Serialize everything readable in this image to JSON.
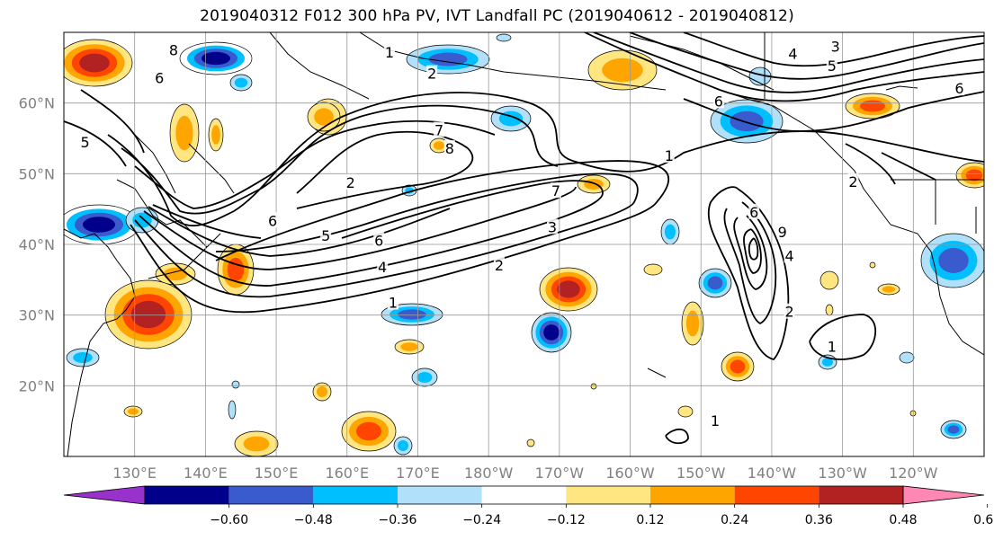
{
  "title": "2019040312 F012 300 hPa PV, IVT Landfall PC (2019040612 - 2019040812)",
  "map": {
    "lon_range": [
      120,
      250
    ],
    "lat_range": [
      10,
      70
    ],
    "lat_labels": [
      "20°N",
      "30°N",
      "40°N",
      "50°N",
      "60°N"
    ],
    "lat_values": [
      20,
      30,
      40,
      50,
      60
    ],
    "lon_labels": [
      "130°E",
      "140°E",
      "150°E",
      "160°E",
      "170°E",
      "180°W",
      "170°W",
      "160°W",
      "150°W",
      "140°W",
      "130°W",
      "120°W"
    ],
    "lon_values": [
      130,
      140,
      150,
      160,
      170,
      180,
      190,
      200,
      210,
      220,
      230,
      240
    ],
    "gridlines": true
  },
  "contours": {
    "variable": "300 hPa PV",
    "color": "#000000",
    "labels": [
      {
        "text": "1",
        "lon": 166.5,
        "lat": 31.8
      },
      {
        "text": "2",
        "lon": 181.5,
        "lat": 37.1
      },
      {
        "text": "3",
        "lon": 189,
        "lat": 42.5
      },
      {
        "text": "4",
        "lon": 165,
        "lat": 36.8
      },
      {
        "text": "5",
        "lon": 157,
        "lat": 41.3
      },
      {
        "text": "6",
        "lon": 164.5,
        "lat": 40.6
      },
      {
        "text": "7",
        "lon": 189.5,
        "lat": 47.6
      },
      {
        "text": "7",
        "lon": 173,
        "lat": 56.2
      },
      {
        "text": "8",
        "lon": 174.5,
        "lat": 53.6
      },
      {
        "text": "6",
        "lon": 149.5,
        "lat": 43.4
      },
      {
        "text": "5",
        "lon": 123,
        "lat": 54.5
      },
      {
        "text": "6",
        "lon": 133.5,
        "lat": 63.6
      },
      {
        "text": "8",
        "lon": 135.5,
        "lat": 67.5
      },
      {
        "text": "2",
        "lon": 160.5,
        "lat": 48.8
      },
      {
        "text": "6",
        "lon": 217.5,
        "lat": 44.6
      },
      {
        "text": "9",
        "lon": 221.5,
        "lat": 41.8
      },
      {
        "text": "4",
        "lon": 222.5,
        "lat": 38.4
      },
      {
        "text": "2",
        "lon": 222.5,
        "lat": 30.5
      },
      {
        "text": "1",
        "lon": 228.5,
        "lat": 25.6
      },
      {
        "text": "1",
        "lon": 205.5,
        "lat": 52.6
      },
      {
        "text": "2",
        "lon": 231.5,
        "lat": 48.9
      },
      {
        "text": "1",
        "lon": 166,
        "lat": 67.2
      },
      {
        "text": "2",
        "lon": 172,
        "lat": 64.2
      },
      {
        "text": "3",
        "lon": 229,
        "lat": 68
      },
      {
        "text": "4",
        "lon": 223,
        "lat": 67
      },
      {
        "text": "5",
        "lon": 228.5,
        "lat": 65.3
      },
      {
        "text": "6",
        "lon": 246.5,
        "lat": 62.1
      },
      {
        "text": "6",
        "lon": 212.5,
        "lat": 60.3
      },
      {
        "text": "1",
        "lon": 212,
        "lat": 15.1
      }
    ]
  },
  "shading": {
    "variable": "IVT Landfall PC",
    "colorbar": {
      "levels": [
        "−0.60",
        "−0.48",
        "−0.36",
        "−0.24",
        "−0.12",
        "0.12",
        "0.24",
        "0.36",
        "0.48",
        "0.60"
      ],
      "colors": [
        "#9932cc",
        "#00008b",
        "#3a5bcd",
        "#00bfff",
        "#b0e0fa",
        "#ffffff",
        "#ffe680",
        "#ffa500",
        "#ff4500",
        "#b22222",
        "#ff88b2"
      ],
      "extend": "both"
    }
  }
}
